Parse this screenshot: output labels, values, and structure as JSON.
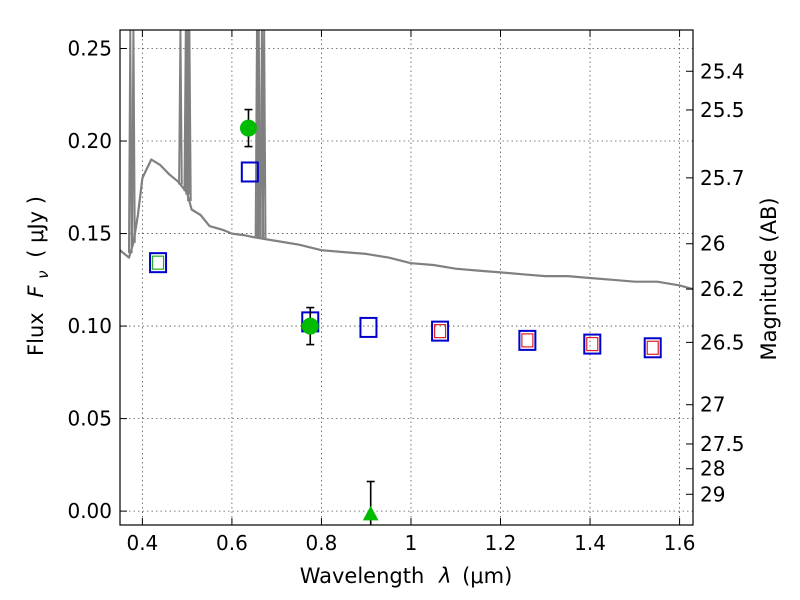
{
  "chart_data": {
    "type": "scatter",
    "xlabel": "Wavelength",
    "xlabel_symbol": "λ",
    "xlabel_unit": "(μm)",
    "ylabel": "Flux",
    "ylabel_symbol": "F",
    "ylabel_subscript": "ν",
    "ylabel_unit": "( μJy )",
    "y2label": "Magnitude (AB)",
    "xlim": [
      0.35,
      1.63
    ],
    "ylim": [
      -0.0075,
      0.26
    ],
    "grid": true,
    "x_ticks": [
      {
        "v": 0.4,
        "label": "0.4"
      },
      {
        "v": 0.6,
        "label": "0.6"
      },
      {
        "v": 0.8,
        "label": "0.8"
      },
      {
        "v": 1.0,
        "label": "1"
      },
      {
        "v": 1.2,
        "label": "1.2"
      },
      {
        "v": 1.4,
        "label": "1.4"
      },
      {
        "v": 1.6,
        "label": "1.6"
      }
    ],
    "y_ticks": [
      {
        "v": 0.0,
        "label": "0.00"
      },
      {
        "v": 0.05,
        "label": "0.05"
      },
      {
        "v": 0.1,
        "label": "0.10"
      },
      {
        "v": 0.15,
        "label": "0.15"
      },
      {
        "v": 0.2,
        "label": "0.20"
      },
      {
        "v": 0.25,
        "label": "0.25"
      }
    ],
    "mag_ticks": [
      {
        "flux": 0.2377,
        "label": "25.4"
      },
      {
        "flux": 0.2168,
        "label": "25.5"
      },
      {
        "flux": 0.1801,
        "label": "25.7"
      },
      {
        "flux": 0.1445,
        "label": "26"
      },
      {
        "flux": 0.12,
        "label": "26.2"
      },
      {
        "flux": 0.0912,
        "label": "26.5"
      },
      {
        "flux": 0.0575,
        "label": "27"
      },
      {
        "flux": 0.0363,
        "label": "27.5"
      },
      {
        "flux": 0.0229,
        "label": "28"
      },
      {
        "flux": 0.0091,
        "label": "29"
      }
    ],
    "model_continuum": [
      [
        0.35,
        0.141
      ],
      [
        0.37,
        0.137
      ],
      [
        0.38,
        0.145
      ],
      [
        0.39,
        0.16
      ],
      [
        0.4,
        0.18
      ],
      [
        0.42,
        0.19
      ],
      [
        0.44,
        0.187
      ],
      [
        0.46,
        0.182
      ],
      [
        0.48,
        0.178
      ],
      [
        0.5,
        0.172
      ],
      [
        0.51,
        0.163
      ],
      [
        0.53,
        0.16
      ],
      [
        0.55,
        0.154
      ],
      [
        0.58,
        0.152
      ],
      [
        0.6,
        0.15
      ],
      [
        0.63,
        0.149
      ],
      [
        0.65,
        0.148
      ],
      [
        0.7,
        0.146
      ],
      [
        0.75,
        0.144
      ],
      [
        0.8,
        0.141
      ],
      [
        0.85,
        0.14
      ],
      [
        0.9,
        0.139
      ],
      [
        0.95,
        0.137
      ],
      [
        1.0,
        0.134
      ],
      [
        1.05,
        0.133
      ],
      [
        1.1,
        0.131
      ],
      [
        1.15,
        0.13
      ],
      [
        1.2,
        0.129
      ],
      [
        1.25,
        0.128
      ],
      [
        1.3,
        0.127
      ],
      [
        1.35,
        0.127
      ],
      [
        1.4,
        0.126
      ],
      [
        1.45,
        0.125
      ],
      [
        1.5,
        0.124
      ],
      [
        1.55,
        0.124
      ],
      [
        1.6,
        0.122
      ],
      [
        1.63,
        0.12
      ]
    ],
    "emission_lines": [
      {
        "x": 0.373,
        "peak": 0.26
      },
      {
        "x": 0.38,
        "peak": 0.26
      },
      {
        "x": 0.485,
        "peak": 0.26
      },
      {
        "x": 0.497,
        "peak": 0.26
      },
      {
        "x": 0.501,
        "peak": 0.26
      },
      {
        "x": 0.505,
        "peak": 0.26
      },
      {
        "x": 0.656,
        "peak": 0.26
      },
      {
        "x": 0.66,
        "peak": 0.26
      },
      {
        "x": 0.667,
        "peak": 0.26
      },
      {
        "x": 0.672,
        "peak": 0.26
      }
    ],
    "model_photometry": [
      [
        0.435,
        0.134
      ],
      [
        0.64,
        0.183
      ],
      [
        0.775,
        0.102
      ],
      [
        0.905,
        0.099
      ],
      [
        1.065,
        0.097
      ],
      [
        1.26,
        0.092
      ],
      [
        1.405,
        0.09
      ],
      [
        1.54,
        0.088
      ]
    ],
    "filter_marks": [
      {
        "x": 0.435,
        "y": 0.134,
        "color": "#22aa22"
      },
      {
        "x": 1.065,
        "y": 0.097,
        "color": "#dd2222"
      },
      {
        "x": 1.26,
        "y": 0.092,
        "color": "#dd2222"
      },
      {
        "x": 1.405,
        "y": 0.09,
        "color": "#dd2222"
      },
      {
        "x": 1.54,
        "y": 0.088,
        "color": "#dd2222"
      }
    ],
    "observed": [
      {
        "x": 0.637,
        "y": 0.207,
        "err": 0.01,
        "marker": "circle"
      },
      {
        "x": 0.775,
        "y": 0.1,
        "err": 0.01,
        "marker": "circle"
      },
      {
        "x": 0.91,
        "y": -0.002,
        "err": 0.018,
        "marker": "triangle"
      }
    ],
    "colors": {
      "model": "#808080",
      "model_box": "#0000cc",
      "observed": "#00bb00",
      "errorbar": "#000000"
    }
  }
}
